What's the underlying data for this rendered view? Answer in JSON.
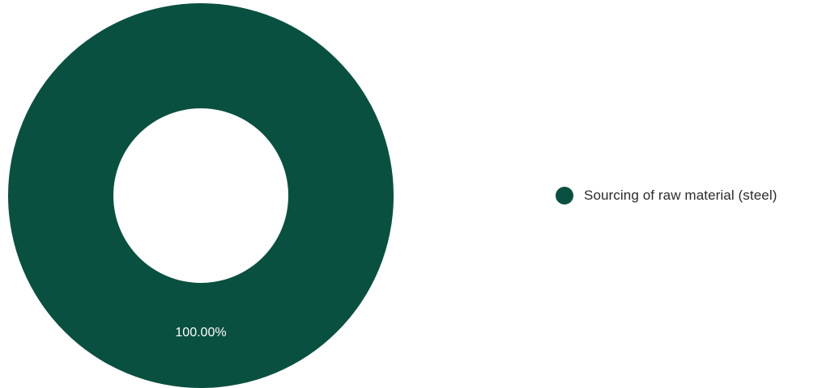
{
  "chart_data": {
    "type": "pie",
    "donut": true,
    "categories": [
      "Sourcing of raw material (steel)"
    ],
    "values": [
      100.0
    ],
    "slice_labels": [
      "100.00%"
    ],
    "colors": [
      "#0a5040"
    ],
    "legend_position": "right"
  }
}
